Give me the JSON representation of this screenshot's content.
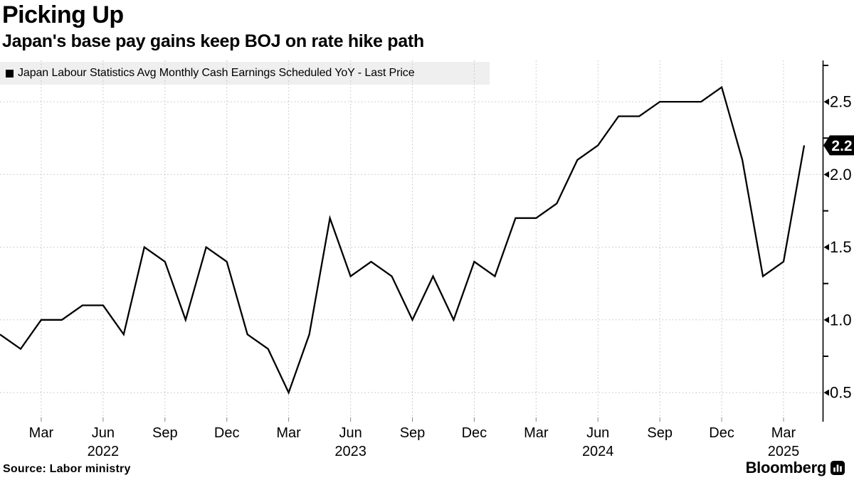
{
  "header": {
    "title": "Picking Up",
    "subtitle": "Japan's base pay gains keep BOJ on rate hike path"
  },
  "legend": {
    "swatch_icon": "black-square-swatch",
    "label": "Japan Labour Statistics Avg Monthly Cash Earnings Scheduled YoY - Last Price"
  },
  "footer": {
    "source": "Source: Labor ministry",
    "brand": "Bloomberg",
    "brand_icon": "bar-chart-icon"
  },
  "chart_data": {
    "type": "line",
    "title": "Picking Up",
    "subtitle": "Japan's base pay gains keep BOJ on rate hike path",
    "line_color": "#000000",
    "grid": "dotted gray; vertical lines at quarterly ticks, horizontal at 0.5 steps",
    "legend_position": "top-left",
    "axis_side": "right",
    "ylabel": "",
    "xlabel": "",
    "ylim": [
      0.31,
      2.78
    ],
    "yticks": [
      0.5,
      1.0,
      1.5,
      2.0,
      2.5
    ],
    "ytick_labels": [
      "0.5",
      "1.0",
      "1.5",
      "2.0",
      "2.5"
    ],
    "minor_yticks": [
      0.75,
      1.25,
      1.75,
      2.25,
      2.75
    ],
    "last_price": 2.2,
    "last_price_label": "2.2",
    "x_ticks": [
      {
        "label": "Mar",
        "i": 2
      },
      {
        "label": "Jun",
        "i": 5,
        "year": "2022"
      },
      {
        "label": "Sep",
        "i": 8
      },
      {
        "label": "Dec",
        "i": 11
      },
      {
        "label": "Mar",
        "i": 14
      },
      {
        "label": "Jun",
        "i": 17,
        "year": "2023"
      },
      {
        "label": "Sep",
        "i": 20
      },
      {
        "label": "Dec",
        "i": 23
      },
      {
        "label": "Mar",
        "i": 26
      },
      {
        "label": "Jun",
        "i": 29,
        "year": "2024"
      },
      {
        "label": "Sep",
        "i": 32
      },
      {
        "label": "Dec",
        "i": 35
      },
      {
        "label": "Mar",
        "i": 38,
        "year": "2025"
      }
    ],
    "series": [
      {
        "name": "Japan Labour Statistics Avg Monthly Cash Earnings Scheduled YoY - Last Price",
        "months": [
          "2022-01",
          "2022-02",
          "2022-03",
          "2022-04",
          "2022-05",
          "2022-06",
          "2022-07",
          "2022-08",
          "2022-09",
          "2022-10",
          "2022-11",
          "2022-12",
          "2023-01",
          "2023-02",
          "2023-03",
          "2023-04",
          "2023-05",
          "2023-06",
          "2023-07",
          "2023-08",
          "2023-09",
          "2023-10",
          "2023-11",
          "2023-12",
          "2024-01",
          "2024-02",
          "2024-03",
          "2024-04",
          "2024-05",
          "2024-06",
          "2024-07",
          "2024-08",
          "2024-09",
          "2024-10",
          "2024-11",
          "2024-12",
          "2025-01",
          "2025-02",
          "2025-03",
          "2025-04"
        ],
        "values": [
          0.9,
          0.8,
          1.0,
          1.0,
          1.1,
          1.1,
          0.9,
          1.5,
          1.4,
          1.0,
          1.5,
          1.4,
          0.9,
          0.8,
          0.5,
          0.9,
          1.7,
          1.3,
          1.4,
          1.3,
          1.0,
          1.3,
          1.0,
          1.4,
          1.3,
          1.7,
          1.7,
          1.8,
          2.1,
          2.2,
          2.4,
          2.4,
          2.5,
          2.5,
          2.5,
          2.6,
          2.1,
          1.3,
          1.4,
          2.2
        ]
      }
    ]
  }
}
